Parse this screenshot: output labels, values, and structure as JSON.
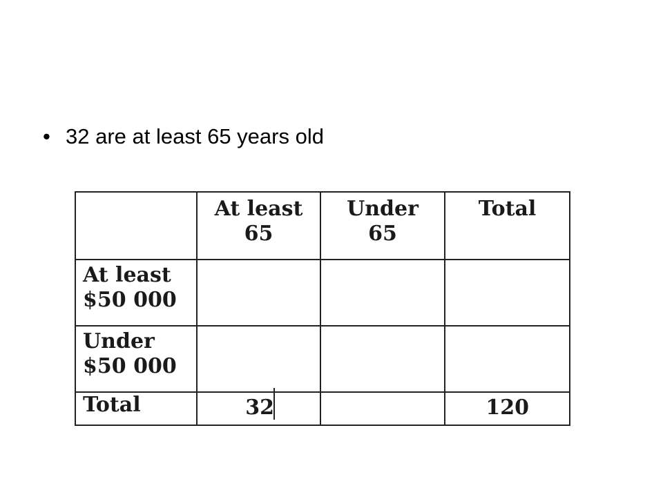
{
  "bullets": [
    "32 are at least 65 years old"
  ],
  "table": {
    "columns": [
      "At least 65",
      "Under 65",
      "Total"
    ],
    "rows": [
      {
        "label": "At least $50 000"
      },
      {
        "label": "Under $50 000"
      },
      {
        "label": "Total",
        "at_least_65": 32,
        "total": 120
      }
    ]
  }
}
